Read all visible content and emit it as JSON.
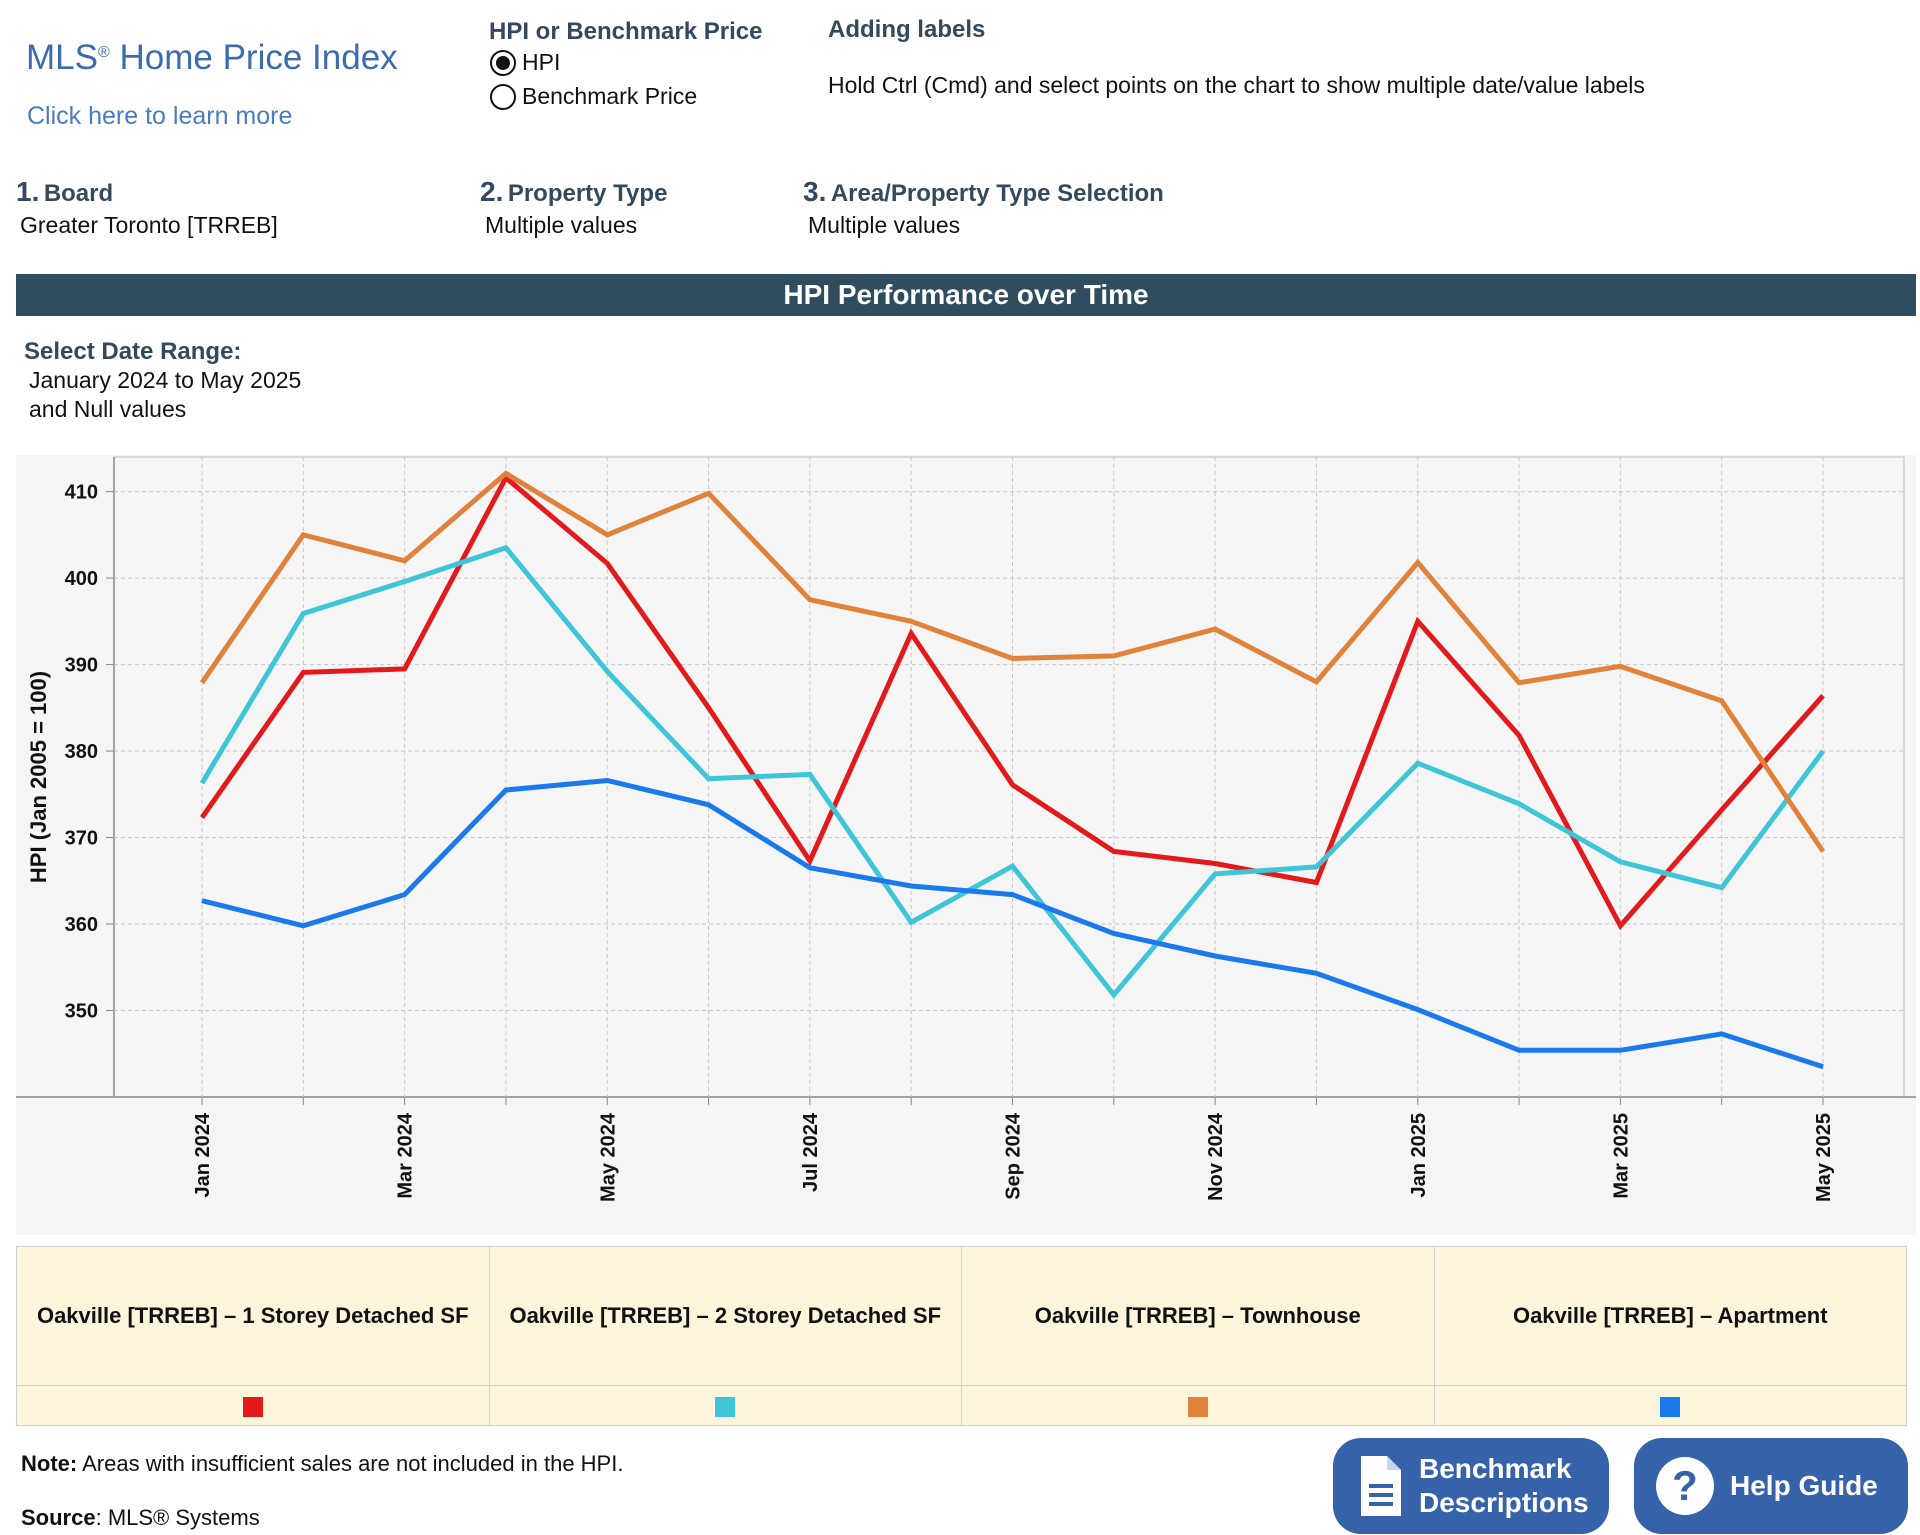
{
  "logo": {
    "title": "MLS",
    "reg": "®",
    "title_rest": " Home Price Index",
    "link": "Click here to learn more"
  },
  "measure_selector": {
    "heading": "HPI or Benchmark Price",
    "options": [
      "HPI",
      "Benchmark Price"
    ],
    "selected": "HPI"
  },
  "labels_help": {
    "heading": "Adding labels",
    "text": "Hold Ctrl (Cmd) and select points on the chart to show multiple date/value labels"
  },
  "filters": [
    {
      "num": "1.",
      "label": "Board",
      "value": "Greater Toronto [TRREB]"
    },
    {
      "num": "2.",
      "label": "Property Type",
      "value": "Multiple values"
    },
    {
      "num": "3.",
      "label": "Area/Property Type Selection",
      "value": "Multiple values"
    }
  ],
  "banner": "HPI Performance over Time",
  "date_range": {
    "label": "Select Date Range:",
    "line1": "January 2024 to May 2025",
    "line2": "and Null values"
  },
  "chart_data": {
    "type": "line",
    "ylabel": "HPI (Jan 2005 = 100)",
    "xlabel": "",
    "ylim": [
      340,
      414
    ],
    "yticks": [
      350,
      360,
      370,
      380,
      390,
      400,
      410
    ],
    "x": [
      "Jan 2024",
      "Feb 2024",
      "Mar 2024",
      "Apr 2024",
      "May 2024",
      "Jun 2024",
      "Jul 2024",
      "Aug 2024",
      "Sep 2024",
      "Oct 2024",
      "Nov 2024",
      "Dec 2024",
      "Jan 2025",
      "Feb 2025",
      "Mar 2025",
      "Apr 2025",
      "May 2025"
    ],
    "xtick_labels": [
      "Jan 2024",
      "",
      "Mar 2024",
      "",
      "May 2024",
      "",
      "Jul 2024",
      "",
      "Sep 2024",
      "",
      "Nov 2024",
      "",
      "Jan 2025",
      "",
      "Mar 2025",
      "",
      "May 2025"
    ],
    "grid": true,
    "series": [
      {
        "name": "Oakville [TRREB] – 1 Storey Detached SF",
        "color": "#e31a1c",
        "values": [
          372.3,
          389.1,
          389.5,
          411.6,
          401.7,
          385.0,
          367.3,
          393.6,
          376.1,
          368.4,
          367.0,
          364.8,
          395.0,
          381.8,
          359.8,
          373.2,
          386.4
        ]
      },
      {
        "name": "Oakville [TRREB] – 2 Storey Detached SF",
        "color": "#3ec6d8",
        "values": [
          376.3,
          395.9,
          399.6,
          403.5,
          389.2,
          376.8,
          377.3,
          360.2,
          366.7,
          351.8,
          365.8,
          366.6,
          378.6,
          373.9,
          367.2,
          364.2,
          380.0
        ]
      },
      {
        "name": "Oakville [TRREB] – Townhouse",
        "color": "#e0823a",
        "values": [
          387.9,
          405.0,
          402.0,
          412.1,
          405.0,
          409.8,
          397.5,
          395.0,
          390.7,
          391.0,
          394.1,
          388.0,
          401.8,
          387.9,
          389.8,
          385.8,
          368.4
        ]
      },
      {
        "name": "Oakville [TRREB] – Apartment",
        "color": "#1a7aed",
        "values": [
          362.7,
          359.8,
          363.4,
          375.5,
          376.6,
          373.8,
          366.5,
          364.4,
          363.4,
          358.9,
          356.3,
          354.3,
          350.1,
          345.4,
          345.4,
          347.3,
          343.5
        ]
      }
    ]
  },
  "note": {
    "bold": "Note:",
    "text": " Areas with insufficient sales are not included in the HPI."
  },
  "source": {
    "bold": "Source",
    "text": ": MLS® Systems"
  },
  "buttons": {
    "benchmark_line1": "Benchmark",
    "benchmark_line2": "Descriptions",
    "help": "Help Guide"
  }
}
